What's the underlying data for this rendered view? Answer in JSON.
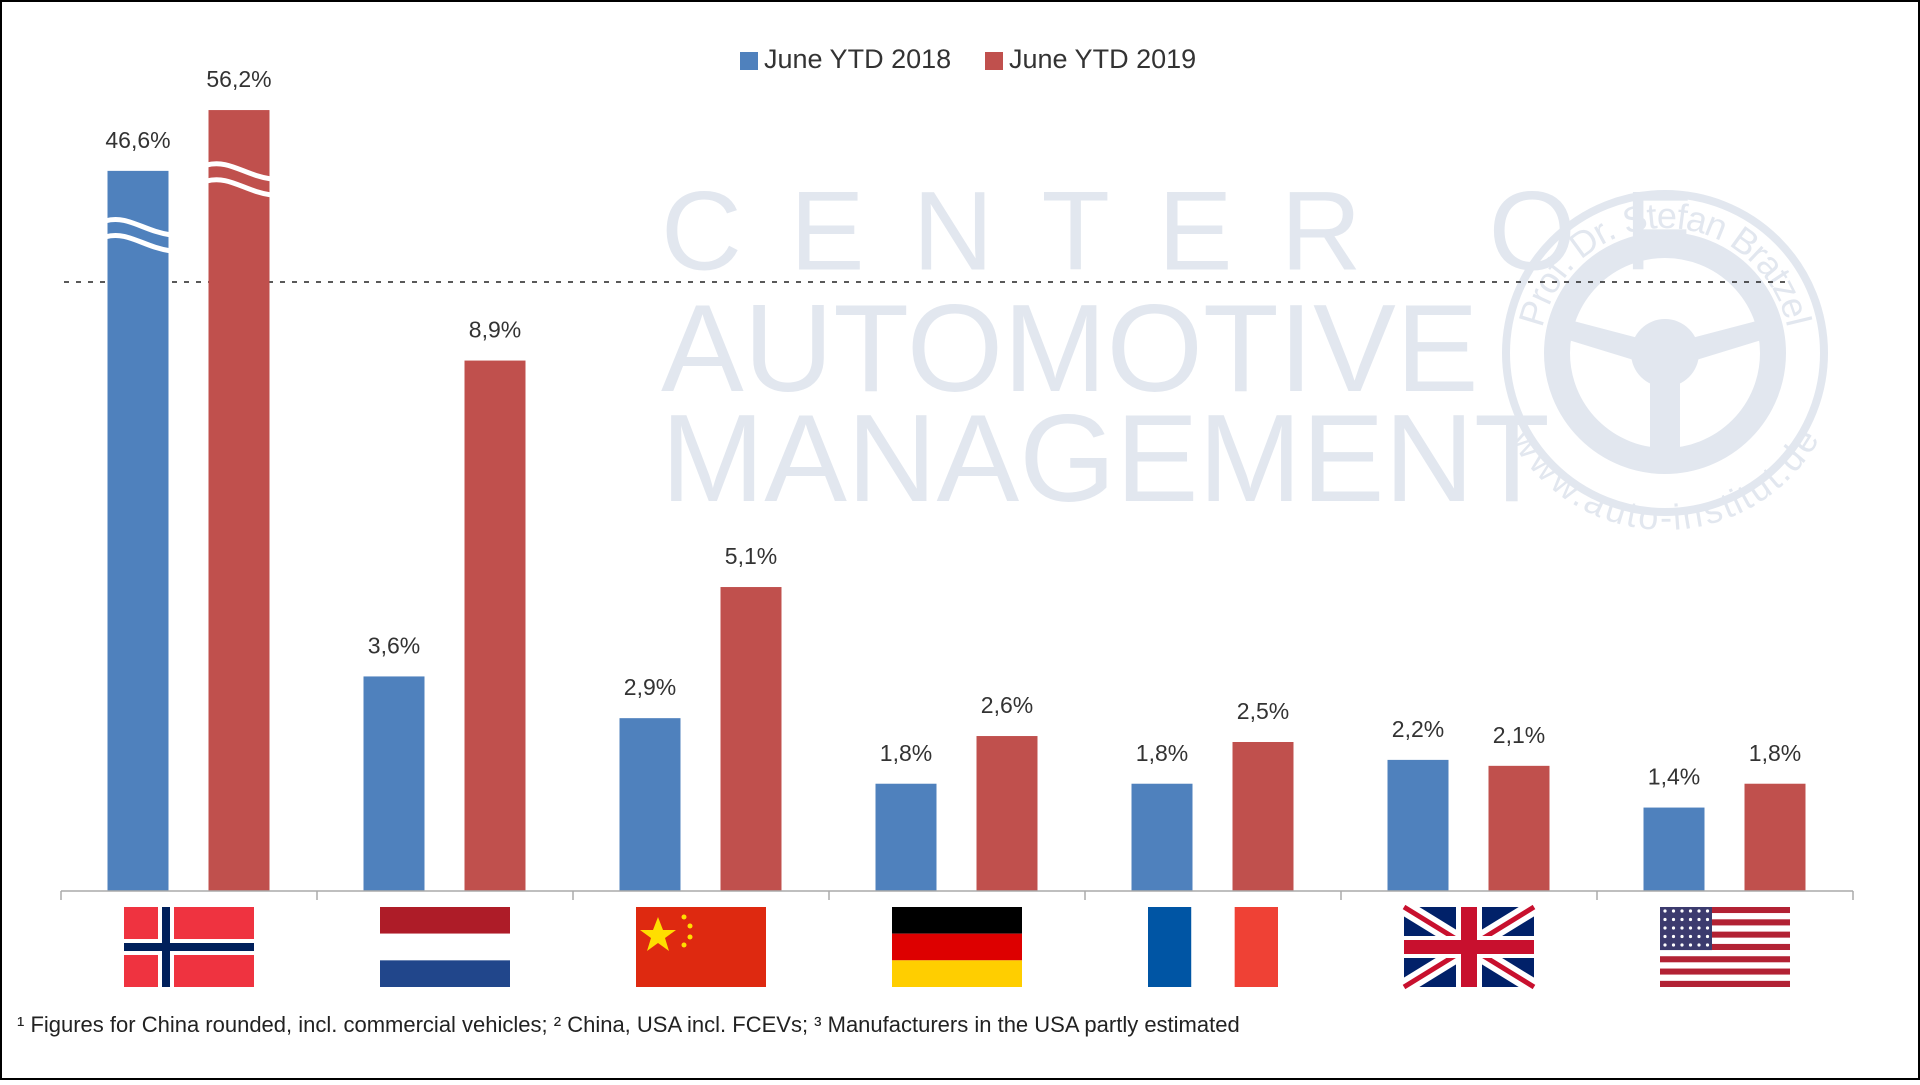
{
  "chart_data": {
    "type": "bar",
    "categories": [
      null,
      null,
      null,
      null,
      null,
      null,
      null
    ],
    "series": [
      {
        "name": "June YTD 2018",
        "color": "#4f81bd",
        "values": [
          46.6,
          3.6,
          2.9,
          1.8,
          1.8,
          2.2,
          1.4
        ],
        "value_labels": [
          "46,6%",
          "3,6%",
          "2,9%",
          "1,8%",
          "1,8%",
          "2,2%",
          "1,4%"
        ]
      },
      {
        "name": "June YTD 2019",
        "color": "#c0504d",
        "values": [
          56.2,
          8.9,
          5.1,
          2.6,
          2.5,
          2.1,
          1.8
        ],
        "value_labels": [
          "56,2%",
          "8,9%",
          "5,1%",
          "2,6%",
          "2,5%",
          "2,1%",
          "1,8%"
        ]
      }
    ],
    "ylim": [
      0,
      60
    ],
    "axis_break": [
      10,
      30
    ],
    "legend": "top",
    "footnote": "¹ Figures for China rounded, incl. commercial vehicles; ² China, USA incl. FCEVs; ³ Manufacturers in the USA partly estimated"
  },
  "watermark": {
    "lines": [
      "CENTER OF",
      "AUTOMOTIVE",
      "MANAGEMENT"
    ],
    "seal": [
      "Prof. Dr. Stefan Bratzel",
      "www.auto-institut.de"
    ]
  }
}
